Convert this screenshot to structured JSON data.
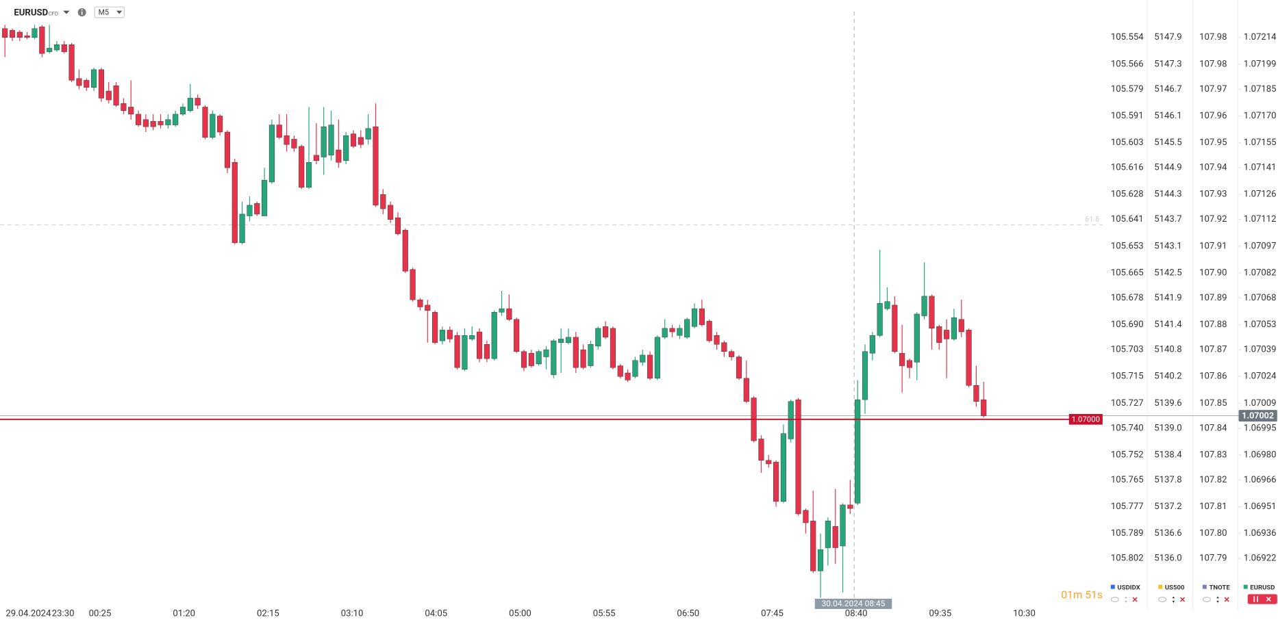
{
  "header": {
    "symbol": "EURUSD",
    "instrument_type": "CFD",
    "timeframe": "M5"
  },
  "chart_data": {
    "type": "candlestick",
    "date_label": "29.04.2024",
    "time_labels": [
      "23:30",
      "00:25",
      "01:20",
      "02:15",
      "03:10",
      "04:05",
      "05:00",
      "05:55",
      "06:50",
      "07:45",
      "08:40",
      "09:35",
      "10:30"
    ],
    "colors": {
      "up": "#26a67a",
      "down": "#e5334b"
    },
    "ylim": [
      1.06896,
      1.07235
    ],
    "yticks": [
      1.07214,
      1.07199,
      1.07185,
      {
        "value": 1.0717,
        "label": "1.07170"
      },
      1.07155,
      1.07141,
      1.07126,
      1.07112,
      1.07097,
      1.07082,
      1.07068,
      1.07053,
      1.07039,
      1.07024,
      1.07009,
      1.06995,
      {
        "value": 1.0698,
        "label": "1.06980"
      },
      1.06966,
      1.06951,
      1.06936,
      1.06922
    ],
    "main_series": {
      "name": "EURUSD",
      "color": "#26a67a"
    },
    "compare_axes": [
      {
        "name": "USDIDX",
        "color": "#2f6fe0",
        "ticks": [
          105.554,
          105.566,
          105.579,
          105.591,
          105.603,
          105.616,
          105.628,
          105.641,
          105.653,
          105.665,
          105.678,
          {
            "value": 105.69,
            "label": "105.690"
          },
          105.703,
          105.715,
          105.727,
          {
            "value": 105.74,
            "label": "105.740"
          },
          105.752,
          105.765,
          105.777,
          105.789,
          105.802
        ]
      },
      {
        "name": "US500",
        "color": "#f7c21b",
        "ticks": [
          5147.9,
          5147.3,
          5146.7,
          5146.1,
          5145.5,
          5144.9,
          5144.3,
          5143.7,
          5143.1,
          5142.5,
          5141.9,
          5141.4,
          5140.8,
          5140.2,
          5139.6,
          {
            "value": 5139,
            "label": "5139.0"
          },
          5138.4,
          5137.8,
          5137.2,
          5136.6,
          {
            "value": 5136,
            "label": "5136.0"
          }
        ]
      },
      {
        "name": "TNOTE",
        "color": "#7a7fb5",
        "ticks": [
          107.98,
          107.98,
          107.97,
          107.96,
          107.95,
          107.94,
          107.93,
          107.92,
          107.91,
          {
            "value": 107.9,
            "label": "107.90"
          },
          107.89,
          107.88,
          107.87,
          107.86,
          107.85,
          107.84,
          107.83,
          107.82,
          107.81,
          {
            "value": 107.8,
            "label": "107.80"
          },
          107.79
        ]
      }
    ],
    "price_line": {
      "value": 1.07,
      "label": "1.07000",
      "color": "#c8102e"
    },
    "last_price": {
      "value": 1.07002,
      "label": "1.07002"
    },
    "level": {
      "value": 1.07109,
      "label": "61.8"
    },
    "crosshair": {
      "label": "30.04.2024 08:45"
    },
    "timer": "01m 51s",
    "ohlc": [
      [
        1.07219,
        1.07221,
        1.07203,
        1.07214
      ],
      [
        1.07218,
        1.07219,
        1.07212,
        1.07214
      ],
      [
        1.07217,
        1.07218,
        1.07212,
        1.07214
      ],
      [
        1.07215,
        1.07217,
        1.07213,
        1.07214
      ],
      [
        1.07214,
        1.07221,
        1.07213,
        1.07219
      ],
      [
        1.0722,
        1.07221,
        1.07203,
        1.07205
      ],
      [
        1.07206,
        1.07221,
        1.07205,
        1.07208
      ],
      [
        1.07207,
        1.07212,
        1.07206,
        1.0721
      ],
      [
        1.0721,
        1.07212,
        1.07205,
        1.07206
      ],
      [
        1.0721,
        1.07211,
        1.07189,
        1.0719
      ],
      [
        1.07191,
        1.07196,
        1.07185,
        1.07187
      ],
      [
        1.0719,
        1.07191,
        1.07184,
        1.07186
      ],
      [
        1.07186,
        1.07197,
        1.07184,
        1.07196
      ],
      [
        1.07196,
        1.07197,
        1.07178,
        1.0718
      ],
      [
        1.07184,
        1.07189,
        1.07177,
        1.07179
      ],
      [
        1.07187,
        1.07189,
        1.07175,
        1.07176
      ],
      [
        1.07177,
        1.0718,
        1.07171,
        1.07173
      ],
      [
        1.07175,
        1.0719,
        1.07168,
        1.07171
      ],
      [
        1.07171,
        1.07173,
        1.07164,
        1.07165
      ],
      [
        1.07168,
        1.07171,
        1.07161,
        1.07164
      ],
      [
        1.07167,
        1.07171,
        1.07162,
        1.07164
      ],
      [
        1.07167,
        1.07171,
        1.07163,
        1.07165
      ],
      [
        1.07165,
        1.07171,
        1.07163,
        1.07168
      ],
      [
        1.07165,
        1.07173,
        1.07164,
        1.07171
      ],
      [
        1.07171,
        1.07177,
        1.0717,
        1.07175
      ],
      [
        1.07173,
        1.07188,
        1.07172,
        1.0718
      ],
      [
        1.0718,
        1.07182,
        1.07174,
        1.07176
      ],
      [
        1.07175,
        1.07176,
        1.07157,
        1.07158
      ],
      [
        1.07158,
        1.07173,
        1.07157,
        1.07171
      ],
      [
        1.0717,
        1.07171,
        1.07159,
        1.07161
      ],
      [
        1.07161,
        1.07162,
        1.07138,
        1.07141
      ],
      [
        1.07144,
        1.07146,
        1.07098,
        1.07099
      ],
      [
        1.07099,
        1.07122,
        1.07098,
        1.07115
      ],
      [
        1.07114,
        1.07125,
        1.07111,
        1.0712
      ],
      [
        1.07121,
        1.07122,
        1.07114,
        1.07115
      ],
      [
        1.07114,
        1.07141,
        1.07114,
        1.07134
      ],
      [
        1.07133,
        1.07168,
        1.07132,
        1.07165
      ],
      [
        1.07165,
        1.07171,
        1.07157,
        1.07158
      ],
      [
        1.07159,
        1.07171,
        1.0715,
        1.07154
      ],
      [
        1.07157,
        1.07159,
        1.0715,
        1.07152
      ],
      [
        1.07153,
        1.07154,
        1.07129,
        1.0713
      ],
      [
        1.0713,
        1.07175,
        1.07129,
        1.07144
      ],
      [
        1.07148,
        1.07166,
        1.07143,
        1.07145
      ],
      [
        1.07147,
        1.07175,
        1.07137,
        1.07164
      ],
      [
        1.07148,
        1.07173,
        1.07145,
        1.07165
      ],
      [
        1.07151,
        1.07168,
        1.07141,
        1.07144
      ],
      [
        1.07145,
        1.07161,
        1.07143,
        1.07159
      ],
      [
        1.0716,
        1.07162,
        1.07152,
        1.07153
      ],
      [
        1.07158,
        1.07162,
        1.07152,
        1.07154
      ],
      [
        1.07157,
        1.07171,
        1.07154,
        1.07163
      ],
      [
        1.07164,
        1.07177,
        1.07119,
        1.0712
      ],
      [
        1.07126,
        1.07129,
        1.07115,
        1.07118
      ],
      [
        1.0712,
        1.07122,
        1.0711,
        1.07112
      ],
      [
        1.07113,
        1.07116,
        1.07103,
        1.07104
      ],
      [
        1.07106,
        1.07107,
        1.07082,
        1.07083
      ],
      [
        1.07084,
        1.07085,
        1.07066,
        1.07067
      ],
      [
        1.07067,
        1.07068,
        1.07061,
        1.07063
      ],
      [
        1.07064,
        1.07067,
        1.07043,
        1.07061
      ],
      [
        1.0706,
        1.07061,
        1.07042,
        1.07043
      ],
      [
        1.07044,
        1.07052,
        1.07042,
        1.0705
      ],
      [
        1.0705,
        1.07052,
        1.07043,
        1.07045
      ],
      [
        1.07047,
        1.07049,
        1.07028,
        1.07029
      ],
      [
        1.07028,
        1.07051,
        1.07027,
        1.07047
      ],
      [
        1.07045,
        1.07052,
        1.07044,
        1.07047
      ],
      [
        1.07049,
        1.07051,
        1.07032,
        1.07034
      ],
      [
        1.07042,
        1.07044,
        1.07032,
        1.07034
      ],
      [
        1.07034,
        1.07061,
        1.07033,
        1.0706
      ],
      [
        1.0706,
        1.07072,
        1.07058,
        1.07062
      ],
      [
        1.07062,
        1.0707,
        1.07055,
        1.07056
      ],
      [
        1.07056,
        1.07057,
        1.07037,
        1.07038
      ],
      [
        1.07038,
        1.07039,
        1.07027,
        1.07029
      ],
      [
        1.07037,
        1.07039,
        1.07029,
        1.0703
      ],
      [
        1.07031,
        1.07039,
        1.0703,
        1.07038
      ],
      [
        1.07035,
        1.07041,
        1.07028,
        1.07039
      ],
      [
        1.07025,
        1.07045,
        1.07023,
        1.07044
      ],
      [
        1.07043,
        1.07051,
        1.07026,
        1.07045
      ],
      [
        1.07043,
        1.07051,
        1.07042,
        1.07046
      ],
      [
        1.07046,
        1.07049,
        1.07026,
        1.07029
      ],
      [
        1.07039,
        1.07042,
        1.07028,
        1.07029
      ],
      [
        1.0703,
        1.07044,
        1.07029,
        1.07042
      ],
      [
        1.07041,
        1.07052,
        1.07039,
        1.07051
      ],
      [
        1.07052,
        1.07055,
        1.07045,
        1.07046
      ],
      [
        1.07051,
        1.07052,
        1.07028,
        1.07029
      ],
      [
        1.0703,
        1.07031,
        1.07023,
        1.07024
      ],
      [
        1.07026,
        1.07028,
        1.07021,
        1.07022
      ],
      [
        1.07024,
        1.07035,
        1.07023,
        1.07033
      ],
      [
        1.07032,
        1.07039,
        1.0703,
        1.07036
      ],
      [
        1.07036,
        1.07038,
        1.07022,
        1.07023
      ],
      [
        1.07023,
        1.07047,
        1.07022,
        1.07046
      ],
      [
        1.07046,
        1.07056,
        1.07045,
        1.07051
      ],
      [
        1.07051,
        1.07053,
        1.07046,
        1.07049
      ],
      [
        1.07047,
        1.07053,
        1.07045,
        1.07051
      ],
      [
        1.07046,
        1.07057,
        1.07045,
        1.07056
      ],
      [
        1.07052,
        1.07065,
        1.07051,
        1.07062
      ],
      [
        1.07062,
        1.07067,
        1.07052,
        1.07053
      ],
      [
        1.07055,
        1.07056,
        1.07043,
        1.07044
      ],
      [
        1.07047,
        1.07049,
        1.07039,
        1.07042
      ],
      [
        1.07043,
        1.07044,
        1.07035,
        1.07038
      ],
      [
        1.07038,
        1.07039,
        1.07033,
        1.07035
      ],
      [
        1.07035,
        1.07036,
        1.07022,
        1.07023
      ],
      [
        1.07023,
        1.07033,
        1.07009,
        1.0701
      ],
      [
        1.07012,
        1.07013,
        1.06987,
        1.06988
      ],
      [
        1.06989,
        1.06991,
        1.0697,
        1.06977
      ],
      [
        1.06977,
        1.0698,
        1.06973,
        1.06975
      ],
      [
        1.06976,
        1.06977,
        1.06951,
        1.06954
      ],
      [
        1.06954,
        1.06997,
        1.06953,
        1.06992
      ],
      [
        1.06989,
        1.07011,
        1.06987,
        1.0701
      ],
      [
        1.07011,
        1.07012,
        1.06946,
        1.06947
      ],
      [
        1.06949,
        1.0695,
        1.06936,
        1.06942
      ],
      [
        1.06943,
        1.0696,
        1.06914,
        1.06915
      ],
      [
        1.06915,
        1.06936,
        1.069,
        1.06927
      ],
      [
        1.06928,
        1.06945,
        1.06918,
        1.06943
      ],
      [
        1.0694,
        1.06961,
        1.06919,
        1.06928
      ],
      [
        1.06929,
        1.06953,
        1.06903,
        1.06952
      ],
      [
        1.06952,
        1.06966,
        1.06947,
        1.0695
      ],
      [
        1.06953,
        1.07022,
        1.06952,
        1.07011
      ],
      [
        1.07011,
        1.07042,
        1.07003,
        1.07038
      ],
      [
        1.07037,
        1.07049,
        1.07033,
        1.07047
      ],
      [
        1.07047,
        1.07095,
        1.07046,
        1.07065
      ],
      [
        1.07062,
        1.07074,
        1.07061,
        1.07066
      ],
      [
        1.07064,
        1.07069,
        1.07037,
        1.07038
      ],
      [
        1.07037,
        1.07053,
        1.07015,
        1.0703
      ],
      [
        1.07033,
        1.07034,
        1.07023,
        1.07029
      ],
      [
        1.07032,
        1.0706,
        1.07022,
        1.07059
      ],
      [
        1.07058,
        1.07088,
        1.07056,
        1.07069
      ],
      [
        1.07069,
        1.0707,
        1.07039,
        1.07051
      ],
      [
        1.07052,
        1.07053,
        1.07039,
        1.07043
      ],
      [
        1.0705,
        1.07056,
        1.07023,
        1.07045
      ],
      [
        1.07045,
        1.07062,
        1.07044,
        1.07057
      ],
      [
        1.07056,
        1.07067,
        1.07046,
        1.07049
      ],
      [
        1.0705,
        1.07051,
        1.07018,
        1.07019
      ],
      [
        1.07019,
        1.0703,
        1.07007,
        1.0701
      ],
      [
        1.07011,
        1.07021,
        1.07001,
        1.07002
      ]
    ]
  }
}
